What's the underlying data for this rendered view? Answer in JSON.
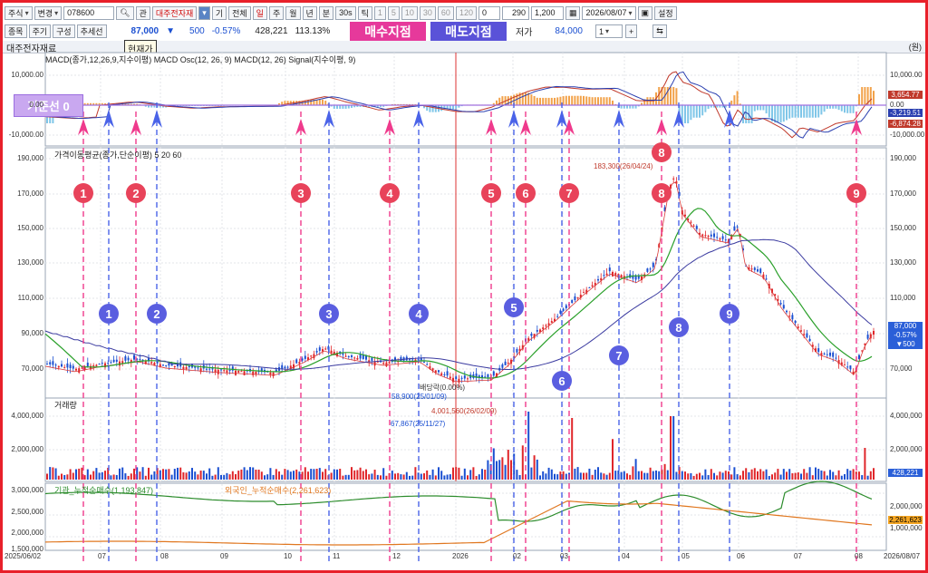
{
  "toolbar": {
    "market": "주식",
    "change": "변경",
    "code": "078600",
    "search_btn": "Q",
    "rel_btn": "관",
    "stock_name": "대주전자재",
    "periods": [
      "틱",
      "일",
      "주",
      "월",
      "년",
      "분",
      "30s",
      "틱"
    ],
    "ticks": [
      "1",
      "5",
      "10",
      "30",
      "60",
      "120"
    ],
    "all_btn": "기",
    "full_btn": "전체",
    "zero_value": "0",
    "count": "290",
    "total": "1,200",
    "date": "2026/08/07",
    "settings_btn": "설정"
  },
  "toolbar2": {
    "tabs": [
      "종목",
      "주기",
      "구성",
      "추세선"
    ],
    "price": "87,000",
    "change_arrow": "▼",
    "change": "500",
    "change_pct": "-0.57%",
    "volume": "428,221",
    "ratio": "113.13%",
    "low_label": "저가",
    "low_value": "84,000",
    "spin_value": "1"
  },
  "tooltip": "현재가",
  "badges": {
    "buy": "매수지점",
    "sell": "매도지점"
  },
  "panel_title": "대주전자재료",
  "unit_label": "(원)",
  "macd": {
    "legend": "MACD(종가,12,26,9,지수이평) MACD Osc(12, 26, 9) MACD(12, 26) Signal(지수이평, 9)",
    "baseline_label": "기준선 0",
    "y_ticks": [
      "10,000.00",
      "0.00",
      "-10,000.00"
    ],
    "right_labels": [
      "3,654.77",
      "-3,219.51",
      "-6,874.28"
    ]
  },
  "price_panel": {
    "legend": "가격이동평균(종가,단순이평) 5 20 60",
    "y_ticks": [
      "190,000",
      "170,000",
      "150,000",
      "130,000",
      "110,000",
      "90,000",
      "70,000"
    ],
    "high_label": "183,300(26/04/24)",
    "low_label": "58,900(25/01/09)",
    "div_label": "배당락(0.00%)",
    "current": [
      "87,000",
      "-0.57%",
      "▼500"
    ]
  },
  "volume_panel": {
    "legend": "거래량",
    "y_ticks": [
      "4,000,000",
      "2,000,000"
    ],
    "max_label": "4,001,560(26/02/09)",
    "min_label": "67,867(25/11/27)",
    "current": "428,221"
  },
  "flow_panel": {
    "legend_inst": "기관_누적순매수(1,193,847)",
    "legend_for": "외국인_누적순매수(2,261,623)",
    "y_ticks_left": [
      "3,000,000",
      "2,500,000",
      "2,000,000",
      "1,500,000"
    ],
    "y_ticks_right": [
      "2,000,000",
      "1,000,000"
    ],
    "current": "2,261,623"
  },
  "x_axis": [
    "2025/06/02",
    "07",
    "08",
    "09",
    "10",
    "11",
    "12",
    "2026",
    "02",
    "03",
    "04",
    "05",
    "06",
    "07",
    "08",
    "2026/08/07"
  ],
  "buy_markers": [
    "1",
    "2",
    "3",
    "4",
    "5",
    "6",
    "7",
    "8",
    "9"
  ],
  "sell_markers": [
    "1",
    "2",
    "3",
    "4",
    "5",
    "6",
    "7",
    "8",
    "9"
  ],
  "icons": [
    "search-icon",
    "chevron-down-icon",
    "calendar-icon",
    "save-icon",
    "plus-icon",
    "minus-icon",
    "refresh-icon"
  ]
}
